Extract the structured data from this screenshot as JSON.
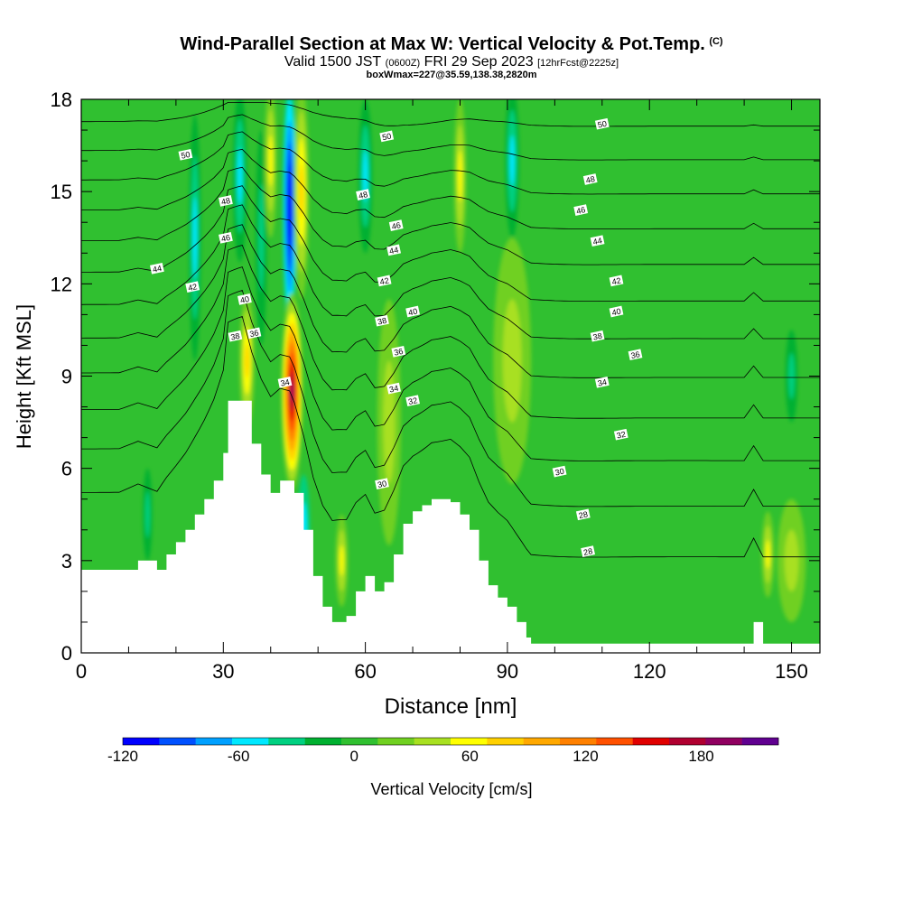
{
  "chart_data": {
    "type": "heatmap",
    "title": "Wind-Parallel Section at Max W: Vertical Velocity & Pot.Temp.",
    "title_mark": "(C)",
    "subtitle_parts": [
      "Valid 1500 JST",
      "(0600Z)",
      "FRI 29 Sep 2023",
      "[12hrFcst@2225z]"
    ],
    "subtitle2": "boxWmax=227@35.59,138.38,2820m",
    "xlabel": "Distance [nm]",
    "ylabel": "Height [Kft MSL]",
    "xlim": [
      0,
      156
    ],
    "ylim": [
      0,
      18
    ],
    "x_ticks": [
      "0",
      "30",
      "60",
      "90",
      "120",
      "150"
    ],
    "x_tick_values": [
      0,
      30,
      60,
      90,
      120,
      150
    ],
    "y_ticks": [
      "0",
      "3",
      "6",
      "9",
      "12",
      "15",
      "18"
    ],
    "y_tick_values": [
      0,
      3,
      6,
      9,
      12,
      15,
      18
    ],
    "colorbar": {
      "label": "Vertical Velocity [cm/s]",
      "range": [
        -120,
        220
      ],
      "tick_labels": [
        "-120",
        "-60",
        "0",
        "60",
        "120",
        "180"
      ],
      "tick_values": [
        -120,
        -60,
        0,
        60,
        120,
        180
      ],
      "colors": [
        "#0000ff",
        "#0050ff",
        "#00a0ff",
        "#00e8ff",
        "#00d080",
        "#00b030",
        "#30c030",
        "#70d020",
        "#a8e020",
        "#ffff00",
        "#ffd000",
        "#ffa800",
        "#ff8000",
        "#ff5000",
        "#e00000",
        "#b00030",
        "#900060",
        "#600090"
      ]
    },
    "terrain_kft": [
      [
        0,
        2.7
      ],
      [
        8,
        2.7
      ],
      [
        12,
        3.0
      ],
      [
        16,
        2.7
      ],
      [
        18,
        3.2
      ],
      [
        20,
        3.6
      ],
      [
        22,
        4.0
      ],
      [
        24,
        4.5
      ],
      [
        26,
        5.0
      ],
      [
        28,
        5.6
      ],
      [
        30,
        6.5
      ],
      [
        31,
        8.2
      ],
      [
        34,
        8.2
      ],
      [
        36,
        6.8
      ],
      [
        38,
        5.8
      ],
      [
        40,
        5.2
      ],
      [
        42,
        5.6
      ],
      [
        44,
        5.6
      ],
      [
        45,
        5.2
      ],
      [
        47,
        4.0
      ],
      [
        49,
        2.5
      ],
      [
        51,
        1.5
      ],
      [
        53,
        1.0
      ],
      [
        56,
        1.2
      ],
      [
        58,
        2.0
      ],
      [
        60,
        2.5
      ],
      [
        62,
        2.0
      ],
      [
        64,
        2.3
      ],
      [
        66,
        3.2
      ],
      [
        68,
        4.2
      ],
      [
        70,
        4.6
      ],
      [
        72,
        4.8
      ],
      [
        74,
        5.0
      ],
      [
        78,
        4.9
      ],
      [
        80,
        4.5
      ],
      [
        82,
        4.0
      ],
      [
        84,
        3.0
      ],
      [
        86,
        2.2
      ],
      [
        88,
        1.8
      ],
      [
        90,
        1.5
      ],
      [
        92,
        1.0
      ],
      [
        94,
        0.5
      ],
      [
        95,
        0.3
      ],
      [
        140,
        0.3
      ],
      [
        142,
        1.0
      ],
      [
        144,
        0.3
      ],
      [
        156,
        0.3
      ]
    ],
    "updrafts": [
      {
        "x": 44.5,
        "y": 8.5,
        "w": 190,
        "half_width": 2.3,
        "half_height": 3.2
      },
      {
        "x": 35,
        "y": 9.5,
        "w": 75,
        "half_width": 1.6,
        "half_height": 2.2
      },
      {
        "x": 46.5,
        "y": 15.0,
        "w": 70,
        "half_width": 1.6,
        "half_height": 3.5
      },
      {
        "x": 40,
        "y": 16.0,
        "w": 60,
        "half_width": 1.3,
        "half_height": 2.5
      },
      {
        "x": 55,
        "y": 3.0,
        "w": 65,
        "half_width": 1.3,
        "half_height": 1.5
      },
      {
        "x": 65,
        "y": 7.5,
        "w": 35,
        "half_width": 2.5,
        "half_height": 4
      },
      {
        "x": 80,
        "y": 15.5,
        "w": 55,
        "half_width": 1.3,
        "half_height": 2.5
      },
      {
        "x": 91,
        "y": 9.5,
        "w": 35,
        "half_width": 4,
        "half_height": 4
      },
      {
        "x": 145,
        "y": 3.2,
        "w": 65,
        "half_width": 1.3,
        "half_height": 1.4
      },
      {
        "x": 150,
        "y": 3.0,
        "w": 35,
        "half_width": 3,
        "half_height": 2
      }
    ],
    "downdrafts": [
      {
        "x": 44,
        "y": 14.5,
        "w": -125,
        "half_width": 1.5,
        "half_height": 4.2
      },
      {
        "x": 24,
        "y": 13.5,
        "w": -55,
        "half_width": 1.3,
        "half_height": 4.0
      },
      {
        "x": 33.5,
        "y": 15.5,
        "w": -55,
        "half_width": 1.5,
        "half_height": 2.8
      },
      {
        "x": 38,
        "y": 13.5,
        "w": -35,
        "half_width": 1.2,
        "half_height": 3.5
      },
      {
        "x": 47,
        "y": 4.0,
        "w": -45,
        "half_width": 1.3,
        "half_height": 1.8
      },
      {
        "x": 60,
        "y": 15.5,
        "w": -50,
        "half_width": 1.5,
        "half_height": 2.5
      },
      {
        "x": 91,
        "y": 16.0,
        "w": -50,
        "half_width": 1.5,
        "half_height": 2.5
      },
      {
        "x": 14,
        "y": 4.5,
        "w": -35,
        "half_width": 1.0,
        "half_height": 1.5
      },
      {
        "x": 150,
        "y": 9.0,
        "w": -30,
        "half_width": 1.3,
        "half_height": 1.5
      }
    ],
    "theta_levels": [
      28,
      30,
      32,
      34,
      36,
      38,
      40,
      42,
      44,
      46,
      48,
      50
    ],
    "theta_labels": [
      {
        "text": "50",
        "x": 22,
        "y": 16.2
      },
      {
        "text": "48",
        "x": 30.5,
        "y": 14.7
      },
      {
        "text": "46",
        "x": 30.5,
        "y": 13.5
      },
      {
        "text": "44",
        "x": 16,
        "y": 12.5
      },
      {
        "text": "42",
        "x": 23.5,
        "y": 11.9
      },
      {
        "text": "40",
        "x": 34.5,
        "y": 11.5
      },
      {
        "text": "38",
        "x": 32.5,
        "y": 10.3
      },
      {
        "text": "36",
        "x": 36.5,
        "y": 10.4
      },
      {
        "text": "34",
        "x": 43,
        "y": 8.8
      },
      {
        "text": "50",
        "x": 64.5,
        "y": 16.8
      },
      {
        "text": "48",
        "x": 59.5,
        "y": 14.9
      },
      {
        "text": "46",
        "x": 66.5,
        "y": 13.9
      },
      {
        "text": "44",
        "x": 66,
        "y": 13.1
      },
      {
        "text": "42",
        "x": 64,
        "y": 12.1
      },
      {
        "text": "40",
        "x": 70,
        "y": 11.1
      },
      {
        "text": "38",
        "x": 63.5,
        "y": 10.8
      },
      {
        "text": "36",
        "x": 67,
        "y": 9.8
      },
      {
        "text": "34",
        "x": 66,
        "y": 8.6
      },
      {
        "text": "32",
        "x": 70,
        "y": 8.2
      },
      {
        "text": "30",
        "x": 63.5,
        "y": 5.5
      },
      {
        "text": "50",
        "x": 110,
        "y": 17.2
      },
      {
        "text": "48",
        "x": 107.5,
        "y": 15.4
      },
      {
        "text": "46",
        "x": 105.5,
        "y": 14.4
      },
      {
        "text": "44",
        "x": 109,
        "y": 13.4
      },
      {
        "text": "42",
        "x": 113,
        "y": 12.1
      },
      {
        "text": "40",
        "x": 113,
        "y": 11.1
      },
      {
        "text": "38",
        "x": 109,
        "y": 10.3
      },
      {
        "text": "36",
        "x": 117,
        "y": 9.7
      },
      {
        "text": "34",
        "x": 110,
        "y": 8.8
      },
      {
        "text": "32",
        "x": 114,
        "y": 7.1
      },
      {
        "text": "30",
        "x": 101,
        "y": 5.9
      },
      {
        "text": "28",
        "x": 106,
        "y": 4.5
      },
      {
        "text": "28",
        "x": 107,
        "y": 3.3
      }
    ]
  }
}
